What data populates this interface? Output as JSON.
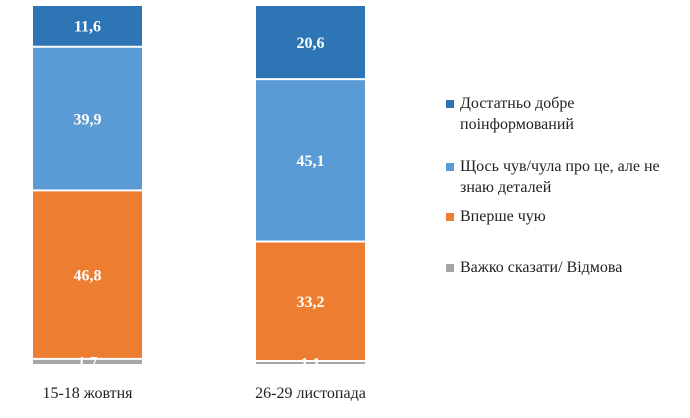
{
  "chart_data": {
    "type": "bar",
    "stacked": true,
    "percent": true,
    "categories": [
      "15-18 жовтня",
      "26-29 листопада"
    ],
    "series": [
      {
        "name": "Достатньо добре поінформований",
        "color": "#2e75b6",
        "values": [
          11.6,
          20.6
        ],
        "labels": [
          "11,6",
          "20,6"
        ]
      },
      {
        "name": "Щось чув/чула про це, але не знаю деталей",
        "color": "#5b9bd5",
        "values": [
          39.9,
          45.1
        ],
        "labels": [
          "39,9",
          "45,1"
        ]
      },
      {
        "name": "Вперше чую",
        "color": "#ed7d31",
        "values": [
          46.8,
          33.2
        ],
        "labels": [
          "46,8",
          "33,2"
        ]
      },
      {
        "name": "Важко сказати/ Відмова",
        "color": "#a5a5a5",
        "values": [
          1.7,
          1.1
        ],
        "labels": [
          "1,7",
          "1,1"
        ]
      }
    ],
    "legend_position": "right",
    "grid": false
  }
}
